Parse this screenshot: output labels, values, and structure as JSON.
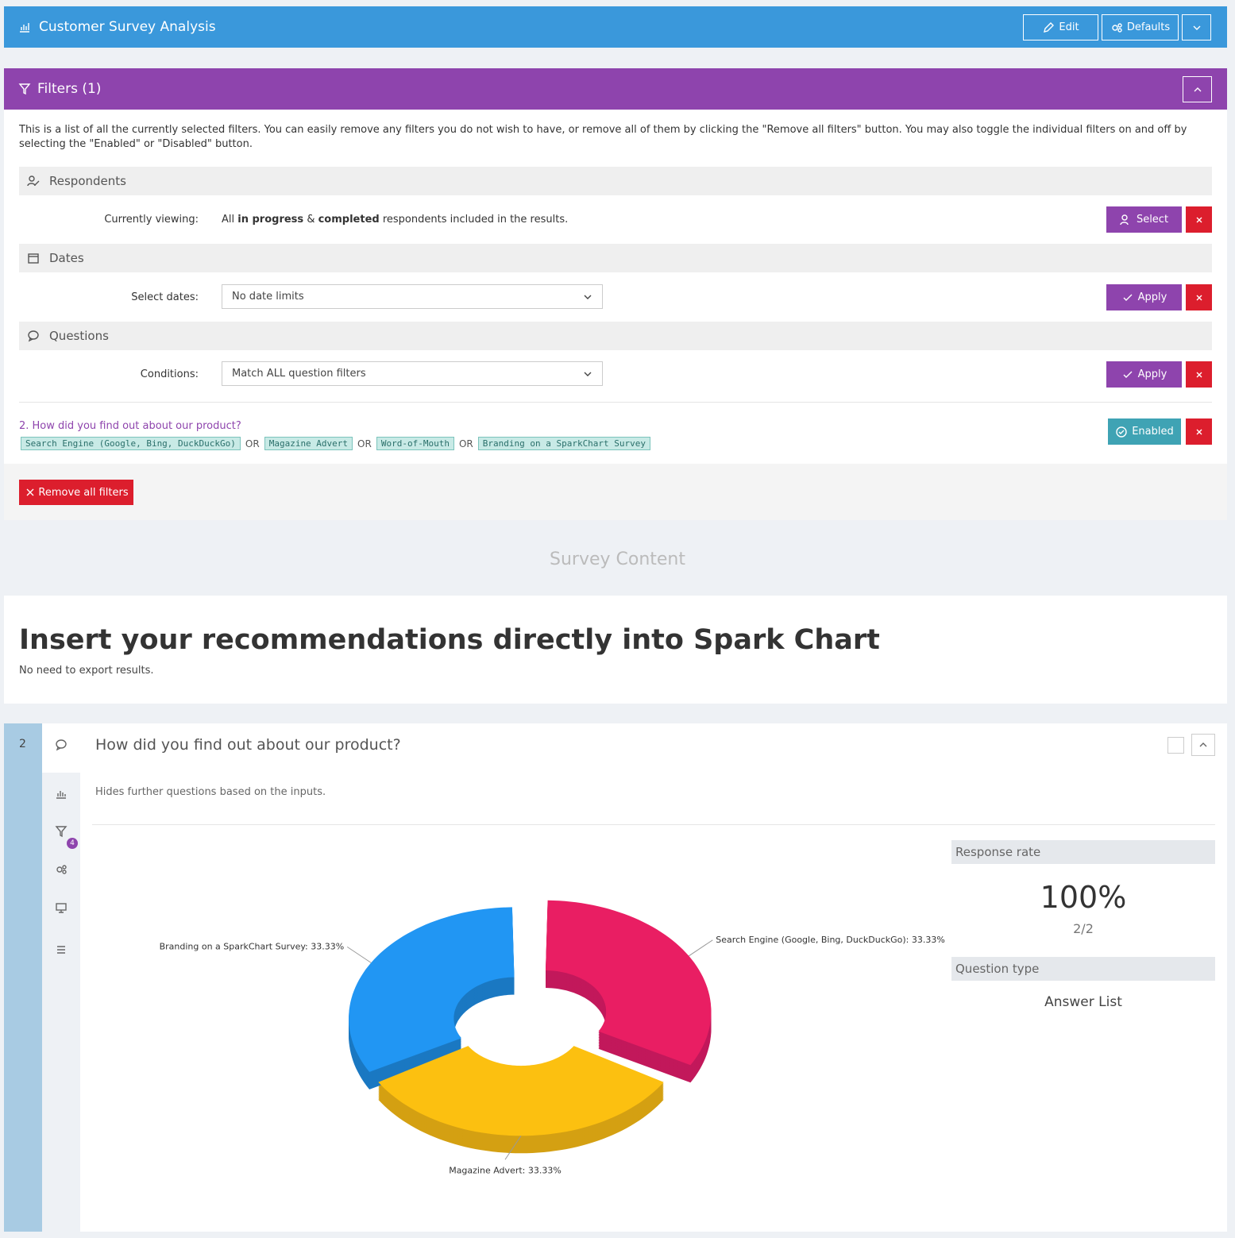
{
  "header": {
    "title": "Customer Survey Analysis",
    "edit": "Edit",
    "defaults": "Defaults"
  },
  "filters": {
    "title": "Filters (1)",
    "description": "This is a list of all the currently selected filters. You can easily remove any filters you do not wish to have, or remove all of them by clicking the \"Remove all filters\" button. You may also toggle the individual filters on and off by selecting the \"Enabled\" or \"Disabled\" button.",
    "respondents": {
      "title": "Respondents",
      "label": "Currently viewing:",
      "text": [
        "All",
        "in progress",
        "&",
        "completed",
        "respondents included in the results."
      ],
      "button": "Select"
    },
    "dates": {
      "title": "Dates",
      "label": "Select dates:",
      "select": "No date limits",
      "button": "Apply"
    },
    "questions": {
      "title": "Questions",
      "label": "Conditions:",
      "select": "Match ALL question filters",
      "button": "Apply"
    },
    "question_filter": {
      "question": "2. How did you find out about our product?",
      "answers": [
        "Search Engine (Google, Bing, DuckDuckGo)",
        "Magazine Advert",
        "Word-of-Mouth",
        "Branding on a SparkChart Survey"
      ],
      "separator": "OR",
      "button": "Enabled"
    },
    "remove_all": "Remove all filters"
  },
  "section_title": "Survey Content",
  "banner": {
    "heading": "Insert your recommendations directly into Spark Chart",
    "subheading": "No need to export results."
  },
  "question": {
    "number": "2",
    "title": "How did you find out about our product?",
    "description": "Hides further questions based on the inputs.",
    "badge": "4",
    "response_rate": {
      "label": "Response rate",
      "value": "100%",
      "count": "2/2"
    },
    "question_type": {
      "label": "Question type",
      "value": "Answer List"
    }
  },
  "chart_data": {
    "type": "pie",
    "donut": true,
    "values": [
      33.33,
      33.33,
      33.33
    ],
    "value_labels": [
      "Search Engine (Google, Bing, DuckDuckGo): 33.33%",
      "Magazine Advert: 33.33%",
      "Branding on a SparkChart Survey: 33.33%"
    ],
    "colors": [
      "#e91e63",
      "#fcc010",
      "#2196f3"
    ],
    "side_colors": [
      "#c2185b",
      "#d4a012",
      "#1a78c2"
    ]
  }
}
